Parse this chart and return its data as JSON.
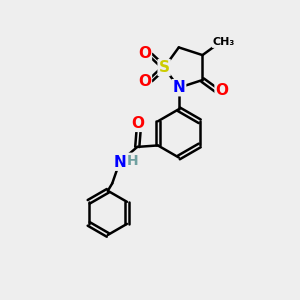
{
  "background_color": "#eeeeee",
  "atom_colors": {
    "C": "#000000",
    "N": "#0000ff",
    "O": "#ff0000",
    "S": "#cccc00",
    "H": "#70a0a0"
  },
  "bond_color": "#000000",
  "bond_width": 1.8,
  "font_size": 10,
  "figsize": [
    3.0,
    3.0
  ],
  "dpi": 100
}
